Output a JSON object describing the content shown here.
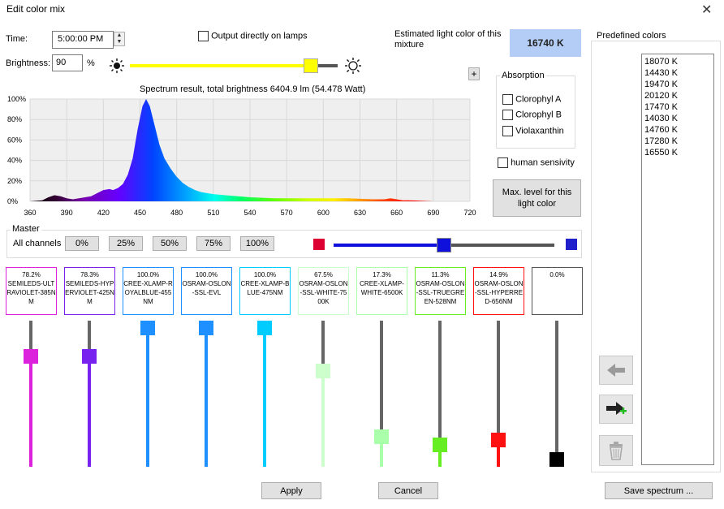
{
  "window": {
    "title": "Edit color mix",
    "close_glyph": "✕"
  },
  "time": {
    "label": "Time:",
    "value": "5:00:00 PM"
  },
  "output": {
    "label": "Output directly on lamps"
  },
  "brightness": {
    "label": "Brightness:",
    "value": "90",
    "unit": "%",
    "slider_fraction": 0.9
  },
  "estimate": {
    "label": "Estimated light color of this mixture",
    "value": "16740 K",
    "color": "#b4cdf7"
  },
  "plus_label": "+",
  "absorption": {
    "title": "Absorption",
    "items": [
      "Clorophyl A",
      "Clorophyl B",
      "Violaxanthin"
    ]
  },
  "human_sensivity": {
    "label": "human sensivity"
  },
  "max_level": {
    "label": "Max. level for this light color"
  },
  "chart_data": {
    "type": "area",
    "title": "Spectrum result, total brightness 6404.9 lm (54.478 Watt)",
    "xlabel": "",
    "ylabel": "",
    "xlim": [
      360,
      720
    ],
    "ylim": [
      0,
      100
    ],
    "x_ticks": [
      360,
      390,
      420,
      450,
      480,
      510,
      540,
      570,
      600,
      630,
      660,
      690,
      720
    ],
    "y_ticks": [
      "100%",
      "80%",
      "60%",
      "40%",
      "20%",
      "0%"
    ],
    "grid": true,
    "x": [
      360,
      370,
      375,
      380,
      385,
      390,
      395,
      400,
      405,
      410,
      415,
      420,
      425,
      428,
      432,
      436,
      440,
      444,
      448,
      452,
      455,
      458,
      462,
      466,
      470,
      475,
      480,
      485,
      490,
      495,
      500,
      510,
      520,
      530,
      540,
      560,
      580,
      600,
      620,
      640,
      650,
      655,
      660,
      665,
      670,
      690,
      720
    ],
    "values": [
      0,
      1,
      4,
      6,
      5,
      3,
      2,
      3,
      4,
      5,
      8,
      11,
      12,
      11,
      13,
      17,
      26,
      42,
      70,
      93,
      100,
      93,
      74,
      55,
      42,
      32,
      24,
      18,
      14,
      11,
      9,
      7,
      6,
      5,
      4,
      3,
      3,
      3,
      3,
      2,
      2,
      3,
      2,
      1,
      1,
      0,
      0
    ]
  },
  "master": {
    "title": "Master",
    "all_label": "All channels",
    "presets": [
      "0%",
      "25%",
      "50%",
      "75%",
      "100%"
    ],
    "slider_fraction": 0.5,
    "left_color": "#dd0033",
    "right_color": "#2020cc"
  },
  "channels": [
    {
      "pct": "78.2%",
      "name": "SEMILEDS-ULTRAVIOLET-385NM",
      "color": "#dd22dd",
      "fraction": 0.782
    },
    {
      "pct": "78.3%",
      "name": "SEMILEDS-HYPERVIOLET-425NM",
      "color": "#7722ee",
      "fraction": 0.783
    },
    {
      "pct": "100.0%",
      "name": "CREE-XLAMP-ROYALBLUE-455NM",
      "color": "#1e90ff",
      "fraction": 1.0
    },
    {
      "pct": "100.0%",
      "name": "OSRAM-OSLON-SSL-EVL",
      "color": "#1e90ff",
      "fraction": 1.0
    },
    {
      "pct": "100.0%",
      "name": "CREE-XLAMP-BLUE-475NM",
      "color": "#00ccff",
      "fraction": 1.0
    },
    {
      "pct": "67.5%",
      "name": "OSRAM-OSLON-SSL-WHITE-7500K",
      "color": "#ccffcc",
      "fraction": 0.675
    },
    {
      "pct": "17.3%",
      "name": "CREE-XLAMP-WHITE-6500K",
      "color": "#aaffaa",
      "fraction": 0.173
    },
    {
      "pct": "11.3%",
      "name": "OSRAM-OSLON-SSL-TRUEGREEN-528NM",
      "color": "#66ee22",
      "fraction": 0.113
    },
    {
      "pct": "14.9%",
      "name": "OSRAM-OSLON-SSL-HYPERRED-656NM",
      "color": "#ff1111",
      "fraction": 0.149
    },
    {
      "pct": "0.0%",
      "name": "",
      "color": "#000000",
      "fraction": 0.0
    }
  ],
  "predefined": {
    "title": "Predefined colors",
    "items": [
      "18070 K",
      "14430 K",
      "19470 K",
      "20120 K",
      "17470 K",
      "14030 K",
      "14760 K",
      "17280 K",
      "16550 K"
    ]
  },
  "icons": {
    "back": "arrow-left-icon",
    "add": "arrow-right-plus-icon",
    "delete": "trash-icon",
    "sun_small": "sun-dim-icon",
    "sun_big": "sun-bright-icon"
  },
  "buttons": {
    "apply": "Apply",
    "cancel": "Cancel",
    "save_spectrum": "Save spectrum ..."
  }
}
